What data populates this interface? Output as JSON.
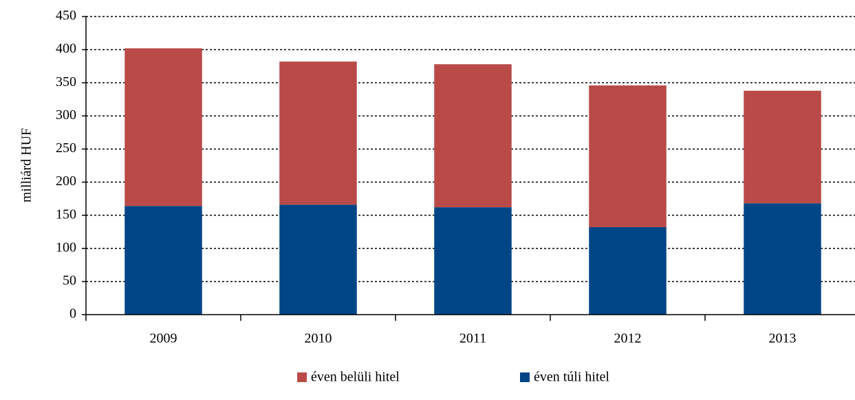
{
  "chart_data": {
    "type": "stacked_bar",
    "y_label": "milliárd HUF",
    "categories": [
      "2009",
      "2010",
      "2011",
      "2012",
      "2013"
    ],
    "series": [
      {
        "name": "éven belüli hitel",
        "color": "#b94a48",
        "values": [
          238,
          216,
          216,
          214,
          170
        ]
      },
      {
        "name": "éven túli hitel",
        "color": "#004586",
        "values": [
          164,
          166,
          162,
          132,
          168
        ]
      }
    ],
    "ylim": [
      0,
      450
    ],
    "yticks": [
      0,
      50,
      100,
      150,
      200,
      250,
      300,
      350,
      400,
      450
    ],
    "grid": true,
    "legend": "bottom"
  }
}
